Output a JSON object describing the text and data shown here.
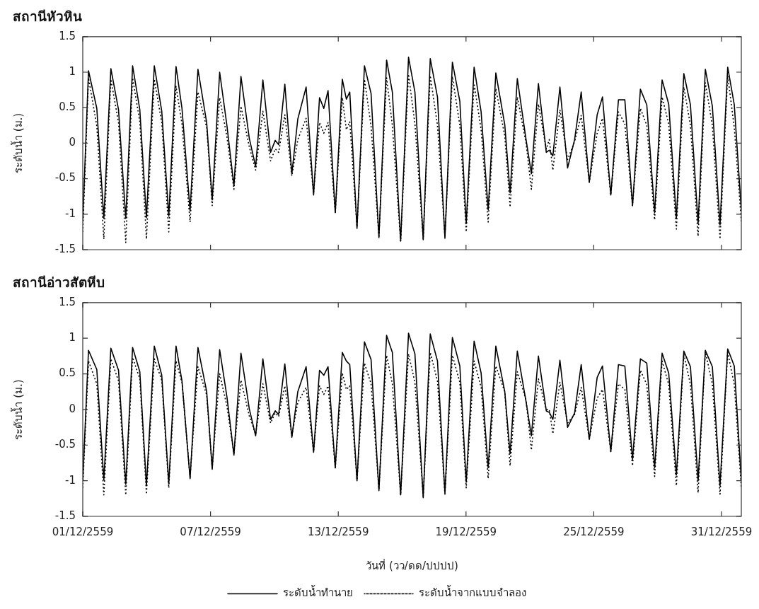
{
  "chart_data": [
    {
      "type": "line",
      "title": "สถานีหัวหิน",
      "ylabel": "ระดับน้ำ (ม.)",
      "xlim": [
        "2559-12-01T00:00",
        "2559-12-31T22:19"
      ],
      "ylim": [
        -1.5,
        1.5
      ],
      "yticks": [
        -1.5,
        -1,
        -0.5,
        0,
        0.5,
        1,
        1.5
      ],
      "xticks": [
        {
          "value": "2559-12-01",
          "label": null
        },
        {
          "value": "2559-12-07",
          "label": null
        },
        {
          "value": "2559-12-13",
          "label": null
        },
        {
          "value": "2559-12-19",
          "label": null
        },
        {
          "value": "2559-12-25",
          "label": null
        },
        {
          "value": "2559-12-31",
          "label": null
        }
      ],
      "tick_labels": "y",
      "grid": false,
      "legend": false,
      "marker": "none",
      "x": [
        "2559-12-01T00:00",
        "2559-12-01T06:29",
        "2559-12-01T15:50",
        "2559-12-01T23:46",
        "2559-12-02T07:41",
        "2559-12-02T16:19",
        "2559-12-03T00:29",
        "2559-12-03T08:10",
        "2559-12-03T16:19",
        "2559-12-03T23:46",
        "2559-12-04T08:38",
        "2559-12-04T17:02",
        "2559-12-05T00:58",
        "2559-12-05T09:07",
        "2559-12-05T15:50",
        "2559-12-06T00:58",
        "2559-12-06T09:50",
        "2559-12-06T19:41",
        "2559-12-07T01:55",
        "2559-12-07T10:19",
        "2559-12-07T18:29",
        "2559-12-08T02:24",
        "2559-12-08T10:19",
        "2559-12-08T19:41",
        "2559-12-09T02:53",
        "2559-12-09T11:02",
        "2559-12-09T19:41",
        "2559-12-10T00:58",
        "2559-12-10T04:48",
        "2559-12-10T11:46",
        "2559-12-10T19:41",
        "2559-12-11T02:24",
        "2559-12-11T11:46",
        "2559-12-11T20:10",
        "2559-12-12T02:53",
        "2559-12-12T07:41",
        "2559-12-12T12:29",
        "2559-12-12T20:38",
        "2559-12-13T04:34",
        "2559-12-13T09:07",
        "2559-12-13T12:58",
        "2559-12-13T21:07",
        "2559-12-14T05:31",
        "2559-12-14T12:58",
        "2559-12-14T21:50",
        "2559-12-15T06:29",
        "2559-12-15T12:58",
        "2559-12-15T22:19",
        "2559-12-16T07:12",
        "2559-12-16T14:24",
        "2559-12-16T23:46",
        "2559-12-17T07:41",
        "2559-12-17T15:50",
        "2559-12-18T00:14",
        "2559-12-18T08:38",
        "2559-12-18T17:02",
        "2559-12-19T00:14",
        "2559-12-19T09:07",
        "2559-12-19T17:02",
        "2559-12-20T00:58",
        "2559-12-20T09:36",
        "2559-12-20T19:41",
        "2559-12-21T01:41",
        "2559-12-21T09:50",
        "2559-12-21T19:41",
        "2559-12-22T01:41",
        "2559-12-22T09:36",
        "2559-12-22T18:29",
        "2559-12-22T21:50",
        "2559-12-23T01:55",
        "2559-12-23T09:50",
        "2559-12-23T18:29",
        "2559-12-24T02:24",
        "2559-12-24T09:50",
        "2559-12-24T18:58",
        "2559-12-25T03:50",
        "2559-12-25T09:50",
        "2559-12-25T19:12",
        "2559-12-26T03:50",
        "2559-12-26T11:02",
        "2559-12-26T19:41",
        "2559-12-27T04:34",
        "2559-12-27T11:46",
        "2559-12-27T20:38",
        "2559-12-28T05:02",
        "2559-12-28T12:29",
        "2559-12-28T21:07",
        "2559-12-29T05:31",
        "2559-12-29T12:58",
        "2559-12-29T21:36",
        "2559-12-30T05:46",
        "2559-12-30T13:41",
        "2559-12-30T22:19",
        "2559-12-31T06:58",
        "2559-12-31T14:24",
        "2559-12-31T22:19"
      ],
      "series": [
        {
          "color": "#000000",
          "line_style": "solid",
          "values": [
            -1.1,
            1.02,
            0.49,
            -1.06,
            1.05,
            0.47,
            -1.06,
            1.09,
            0.47,
            -1.05,
            1.09,
            0.45,
            -1.03,
            1.08,
            0.49,
            -0.95,
            1.04,
            0.29,
            -0.8,
            1.0,
            0.25,
            -0.6,
            0.94,
            0.07,
            -0.33,
            0.89,
            -0.13,
            0.04,
            -0.02,
            0.83,
            -0.43,
            0.34,
            0.79,
            -0.73,
            0.64,
            0.49,
            0.74,
            -0.98,
            0.9,
            0.62,
            0.72,
            -1.2,
            1.09,
            0.7,
            -1.33,
            1.17,
            0.72,
            -1.38,
            1.21,
            0.72,
            -1.36,
            1.19,
            0.65,
            -1.34,
            1.14,
            0.59,
            -1.13,
            1.07,
            0.44,
            -0.94,
            0.99,
            0.26,
            -0.7,
            0.91,
            0.05,
            -0.43,
            0.84,
            -0.13,
            -0.1,
            -0.18,
            0.79,
            -0.35,
            0.05,
            0.72,
            -0.55,
            0.4,
            0.65,
            -0.73,
            0.61,
            0.61,
            -0.88,
            0.76,
            0.54,
            -0.98,
            0.89,
            0.55,
            -1.06,
            0.98,
            0.54,
            -1.13,
            1.04,
            0.52,
            -1.15,
            1.07,
            0.54,
            -0.95
          ]
        },
        {
          "color": "#000000",
          "line_style": "dotted",
          "values": [
            -1.25,
            0.92,
            0.24,
            -1.35,
            0.9,
            0.29,
            -1.4,
            0.92,
            0.3,
            -1.35,
            0.9,
            0.29,
            -1.25,
            0.8,
            0.27,
            -1.11,
            0.72,
            0.22,
            -0.88,
            0.64,
            0.09,
            -0.65,
            0.52,
            -0.05,
            -0.38,
            0.45,
            -0.25,
            -0.08,
            -0.13,
            0.4,
            -0.46,
            0.05,
            0.35,
            -0.71,
            0.29,
            0.14,
            0.29,
            -0.98,
            0.64,
            0.19,
            0.3,
            -1.18,
            0.9,
            0.24,
            -1.31,
            0.92,
            0.25,
            -1.38,
            0.97,
            0.27,
            -1.35,
            0.95,
            0.25,
            -1.31,
            0.94,
            0.25,
            -1.25,
            0.84,
            0.19,
            -1.11,
            0.77,
            0.1,
            -0.9,
            0.65,
            0.0,
            -0.65,
            0.55,
            -0.08,
            0.05,
            -0.38,
            0.47,
            -0.23,
            0.02,
            0.39,
            -0.55,
            0.14,
            0.35,
            -0.73,
            0.44,
            0.27,
            -0.88,
            0.49,
            0.25,
            -1.08,
            0.65,
            0.27,
            -1.21,
            0.79,
            0.25,
            -1.31,
            0.85,
            0.25,
            -1.35,
            0.95,
            0.22,
            -1.1
          ]
        }
      ]
    },
    {
      "type": "line",
      "title": "สถานีอ่าวสัตหีบ",
      "ylabel": "ระดับน้ำ (ม.)",
      "xlabel": "วันที่ (วว/ดด/ปปปป)",
      "xlim": [
        "2559-12-01T00:00",
        "2559-12-31T22:19"
      ],
      "ylim": [
        -1.5,
        1.5
      ],
      "yticks": [
        -1.5,
        -1,
        -0.5,
        0,
        0.5,
        1,
        1.5
      ],
      "xticks": [
        {
          "value": "2559-12-01",
          "label": "01/12/2559"
        },
        {
          "value": "2559-12-07",
          "label": "07/12/2559"
        },
        {
          "value": "2559-12-13",
          "label": "13/12/2559"
        },
        {
          "value": "2559-12-19",
          "label": "19/12/2559"
        },
        {
          "value": "2559-12-25",
          "label": "25/12/2559"
        },
        {
          "value": "2559-12-31",
          "label": "31/12/2559"
        }
      ],
      "grid": false,
      "legend": "bottom",
      "marker": "none",
      "x": [
        "2559-12-01T00:00",
        "2559-12-01T06:29",
        "2559-12-01T15:50",
        "2559-12-01T23:46",
        "2559-12-02T07:41",
        "2559-12-02T16:19",
        "2559-12-03T00:29",
        "2559-12-03T08:10",
        "2559-12-03T16:19",
        "2559-12-03T23:46",
        "2559-12-04T08:38",
        "2559-12-04T17:02",
        "2559-12-05T00:58",
        "2559-12-05T09:07",
        "2559-12-05T15:50",
        "2559-12-06T00:58",
        "2559-12-06T09:50",
        "2559-12-06T19:41",
        "2559-12-07T01:55",
        "2559-12-07T10:19",
        "2559-12-07T18:29",
        "2559-12-08T02:24",
        "2559-12-08T10:19",
        "2559-12-08T19:41",
        "2559-12-09T02:53",
        "2559-12-09T11:02",
        "2559-12-09T19:41",
        "2559-12-10T00:58",
        "2559-12-10T04:48",
        "2559-12-10T11:46",
        "2559-12-10T19:41",
        "2559-12-11T02:24",
        "2559-12-11T11:46",
        "2559-12-11T20:10",
        "2559-12-12T02:53",
        "2559-12-12T07:41",
        "2559-12-12T12:29",
        "2559-12-12T20:38",
        "2559-12-13T04:34",
        "2559-12-13T09:07",
        "2559-12-13T12:58",
        "2559-12-13T21:07",
        "2559-12-14T05:31",
        "2559-12-14T12:58",
        "2559-12-14T21:50",
        "2559-12-15T06:29",
        "2559-12-15T12:58",
        "2559-12-15T22:19",
        "2559-12-16T07:12",
        "2559-12-16T14:24",
        "2559-12-16T23:46",
        "2559-12-17T07:41",
        "2559-12-17T15:50",
        "2559-12-18T00:14",
        "2559-12-18T08:38",
        "2559-12-18T17:02",
        "2559-12-19T00:14",
        "2559-12-19T09:07",
        "2559-12-19T17:02",
        "2559-12-20T00:58",
        "2559-12-20T09:36",
        "2559-12-20T19:41",
        "2559-12-21T01:41",
        "2559-12-21T09:50",
        "2559-12-21T19:41",
        "2559-12-22T01:41",
        "2559-12-22T09:36",
        "2559-12-22T18:29",
        "2559-12-22T21:50",
        "2559-12-23T01:55",
        "2559-12-23T09:50",
        "2559-12-23T18:29",
        "2559-12-24T02:24",
        "2559-12-24T09:50",
        "2559-12-24T18:58",
        "2559-12-25T03:50",
        "2559-12-25T09:50",
        "2559-12-25T19:12",
        "2559-12-26T03:50",
        "2559-12-26T11:02",
        "2559-12-26T19:41",
        "2559-12-27T04:34",
        "2559-12-27T11:46",
        "2559-12-27T20:38",
        "2559-12-28T05:02",
        "2559-12-28T12:29",
        "2559-12-28T21:07",
        "2559-12-29T05:31",
        "2559-12-29T12:58",
        "2559-12-29T21:36",
        "2559-12-30T05:46",
        "2559-12-30T13:41",
        "2559-12-30T22:19",
        "2559-12-31T06:58",
        "2559-12-31T14:24",
        "2559-12-31T22:19"
      ],
      "series": [
        {
          "name": "ระดับน้ำทำนาย",
          "color": "#000000",
          "line_style": "solid",
          "values": [
            -1.0,
            0.83,
            0.56,
            -0.99,
            0.86,
            0.55,
            -1.05,
            0.87,
            0.53,
            -1.07,
            0.89,
            0.48,
            -1.04,
            0.89,
            0.4,
            -0.97,
            0.87,
            0.25,
            -0.84,
            0.84,
            0.18,
            -0.64,
            0.79,
            0.01,
            -0.37,
            0.71,
            -0.14,
            -0.02,
            -0.07,
            0.64,
            -0.39,
            0.25,
            0.6,
            -0.6,
            0.55,
            0.48,
            0.6,
            -0.82,
            0.8,
            0.68,
            0.63,
            -1.0,
            0.95,
            0.7,
            -1.14,
            1.04,
            0.8,
            -1.2,
            1.07,
            0.78,
            -1.24,
            1.06,
            0.68,
            -1.18,
            1.01,
            0.61,
            -1.02,
            0.96,
            0.51,
            -0.82,
            0.89,
            0.25,
            -0.62,
            0.82,
            0.11,
            -0.37,
            0.75,
            -0.02,
            -0.04,
            -0.14,
            0.69,
            -0.25,
            -0.05,
            0.63,
            -0.42,
            0.45,
            0.61,
            -0.59,
            0.63,
            0.61,
            -0.7,
            0.71,
            0.65,
            -0.82,
            0.79,
            0.51,
            -0.92,
            0.82,
            0.6,
            -1.0,
            0.83,
            0.6,
            -1.07,
            0.85,
            0.61,
            -1.0
          ]
        },
        {
          "name": "ระดับน้ำจากแบบจำลอง",
          "color": "#000000",
          "line_style": "dotted",
          "values": [
            -1.1,
            0.68,
            0.36,
            -1.2,
            0.71,
            0.4,
            -1.2,
            0.73,
            0.43,
            -1.19,
            0.71,
            0.41,
            -1.1,
            0.68,
            0.38,
            -0.95,
            0.6,
            0.2,
            -0.82,
            0.5,
            0.05,
            -0.62,
            0.41,
            -0.09,
            -0.35,
            0.36,
            -0.19,
            -0.05,
            -0.1,
            0.33,
            -0.37,
            0.1,
            0.31,
            -0.59,
            0.33,
            0.21,
            0.33,
            -0.82,
            0.51,
            0.28,
            0.33,
            -0.99,
            0.65,
            0.36,
            -1.12,
            0.76,
            0.36,
            -1.2,
            0.78,
            0.38,
            -1.22,
            0.8,
            0.4,
            -1.19,
            0.76,
            0.38,
            -1.1,
            0.68,
            0.31,
            -0.97,
            0.61,
            0.25,
            -0.79,
            0.53,
            0.13,
            -0.57,
            0.43,
            0.0,
            0.0,
            -0.34,
            0.38,
            -0.19,
            -0.07,
            0.31,
            -0.42,
            0.16,
            0.28,
            -0.59,
            0.36,
            0.28,
            -0.79,
            0.55,
            0.35,
            -0.94,
            0.68,
            0.35,
            -1.07,
            0.78,
            0.35,
            -1.17,
            0.81,
            0.36,
            -1.19,
            0.8,
            0.35,
            -1.1
          ]
        }
      ]
    }
  ]
}
